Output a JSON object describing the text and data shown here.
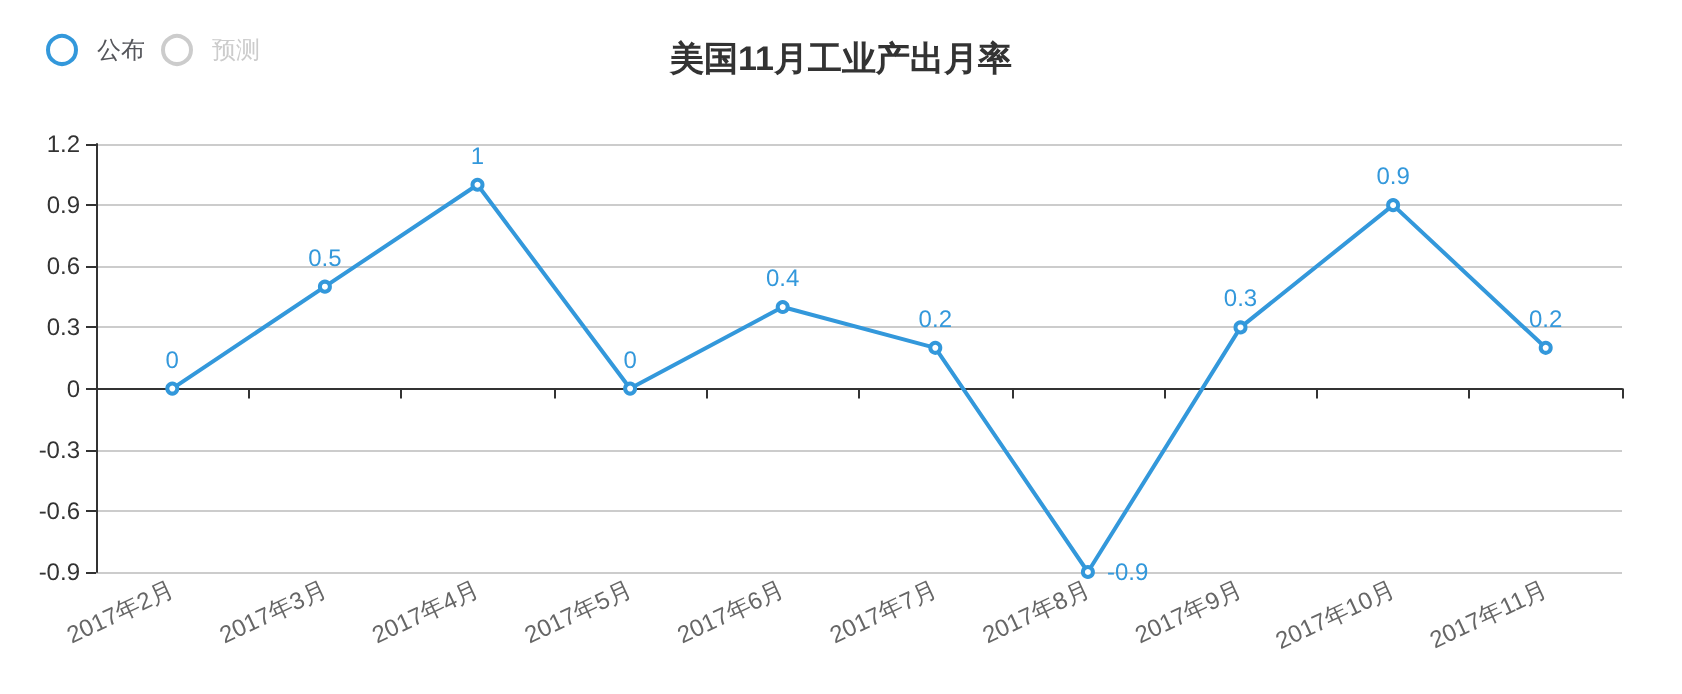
{
  "chart_data": {
    "type": "line",
    "title": "美国11月工业产出月率",
    "categories": [
      "2017年2月",
      "2017年3月",
      "2017年4月",
      "2017年5月",
      "2017年6月",
      "2017年7月",
      "2017年8月",
      "2017年9月",
      "2017年10月",
      "2017年11月"
    ],
    "series": [
      {
        "name": "公布",
        "color": "#3398db",
        "values": [
          0,
          0.5,
          1,
          0,
          0.4,
          0.2,
          -0.9,
          0.3,
          0.9,
          0.2
        ]
      },
      {
        "name": "预测",
        "color": "#cccccc",
        "values": [
          null,
          null,
          null,
          null,
          null,
          null,
          null,
          null,
          null,
          null
        ]
      }
    ],
    "ylim": [
      -0.9,
      1.2
    ],
    "yticks": [
      -0.9,
      -0.6,
      -0.3,
      0,
      0.3,
      0.6,
      0.9,
      1.2
    ],
    "grid": "y",
    "legend": "top left",
    "marker": "circle",
    "line_style": "solid",
    "data_labels": true
  }
}
